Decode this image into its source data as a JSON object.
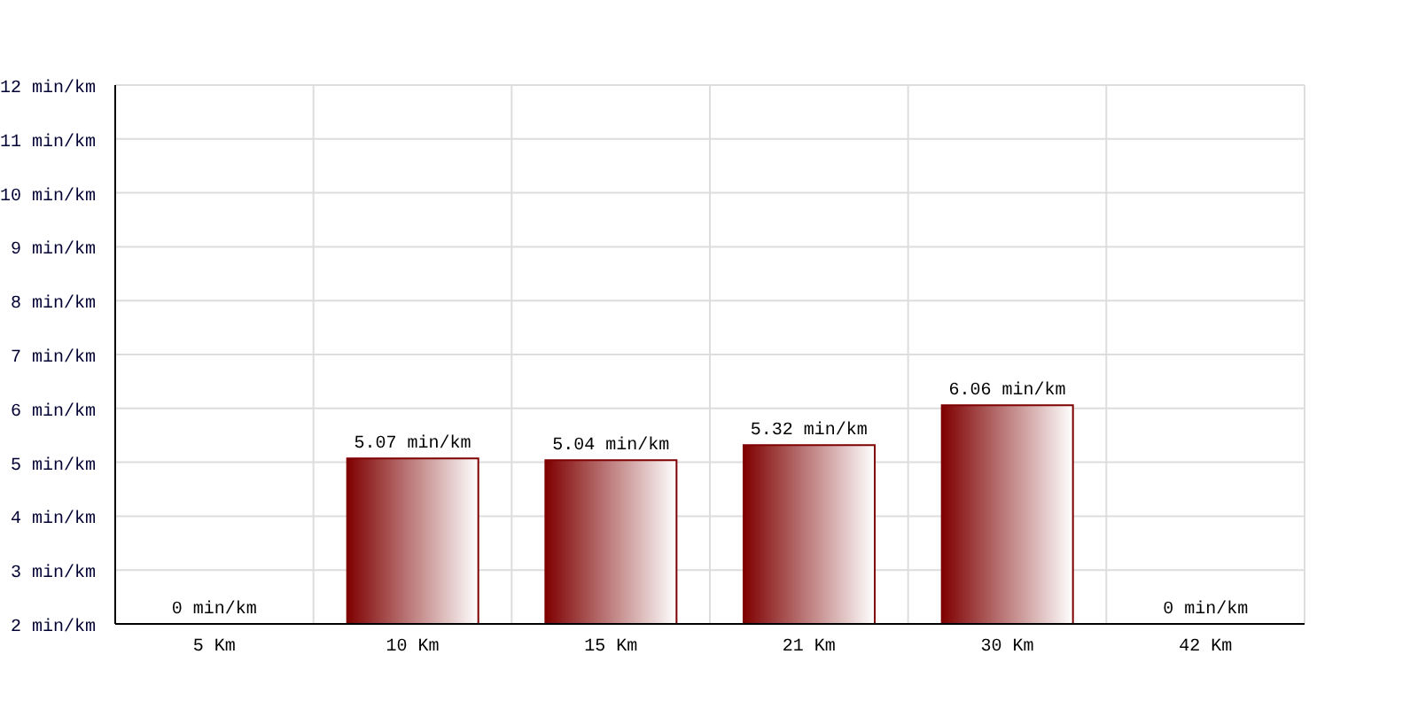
{
  "chart_data": {
    "type": "bar",
    "categories": [
      "5 Km",
      "10 Km",
      "15 Km",
      "21 Km",
      "30 Km",
      "42 Km"
    ],
    "values": [
      null,
      5.07,
      5.04,
      5.32,
      6.06,
      null
    ],
    "value_labels": [
      "0 min/km",
      "5.07 min/km",
      "5.04 min/km",
      "5.32 min/km",
      "6.06 min/km",
      "0 min/km"
    ],
    "color": "#7f0000",
    "ylim": [
      2,
      12
    ],
    "yticks": [
      {
        "value": 2,
        "label": "2 min/km"
      },
      {
        "value": 3,
        "label": "3 min/km"
      },
      {
        "value": 4,
        "label": "4 min/km"
      },
      {
        "value": 5,
        "label": "5 min/km"
      },
      {
        "value": 6,
        "label": "6 min/km"
      },
      {
        "value": 7,
        "label": "7 min/km"
      },
      {
        "value": 8,
        "label": "8 min/km"
      },
      {
        "value": 9,
        "label": "9 min/km"
      },
      {
        "value": 10,
        "label": "10 min/km"
      },
      {
        "value": 11,
        "label": "11 min/km"
      },
      {
        "value": 12,
        "label": "12 min/km"
      }
    ],
    "grid": true
  }
}
